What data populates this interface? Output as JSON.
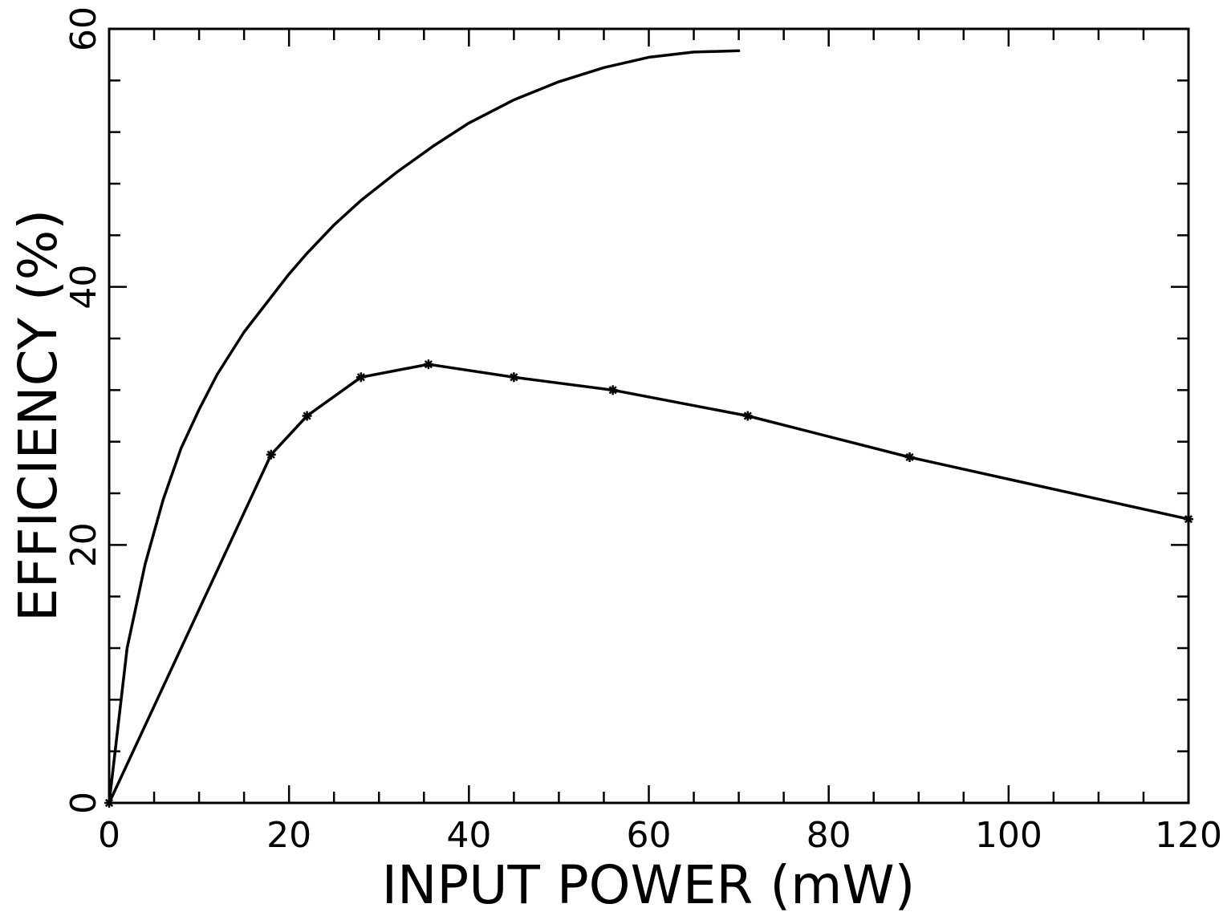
{
  "chart_data": {
    "type": "line",
    "xlabel": "INPUT POWER (mW)",
    "ylabel": "EFFICIENCY (%)",
    "xlim": [
      0,
      120
    ],
    "ylim": [
      0,
      60
    ],
    "x_ticks": [
      0,
      20,
      40,
      60,
      80,
      100,
      120
    ],
    "y_ticks": [
      0,
      20,
      40,
      60
    ],
    "x_minor_step": 5,
    "y_minor_step": 4,
    "grid": false,
    "legend": "none",
    "series": [
      {
        "marker": "none",
        "x": [
          0,
          1,
          2,
          4,
          6,
          8,
          10,
          12,
          15,
          18,
          20,
          22,
          25,
          28,
          32,
          36,
          40,
          45,
          50,
          55,
          60,
          65,
          70
        ],
        "y": [
          0,
          6.0,
          12.0,
          18.5,
          23.5,
          27.5,
          30.5,
          33.2,
          36.5,
          39.2,
          41.0,
          42.6,
          44.8,
          46.7,
          48.9,
          50.9,
          52.7,
          54.5,
          55.9,
          57.0,
          57.8,
          58.2,
          58.3
        ]
      },
      {
        "marker": "asterisk",
        "x": [
          0,
          18,
          22,
          28,
          35.5,
          45,
          56,
          71,
          89,
          120
        ],
        "y": [
          0,
          27.0,
          30.0,
          33.0,
          34.0,
          33.0,
          32.0,
          30.0,
          26.8,
          22.0
        ]
      }
    ]
  }
}
